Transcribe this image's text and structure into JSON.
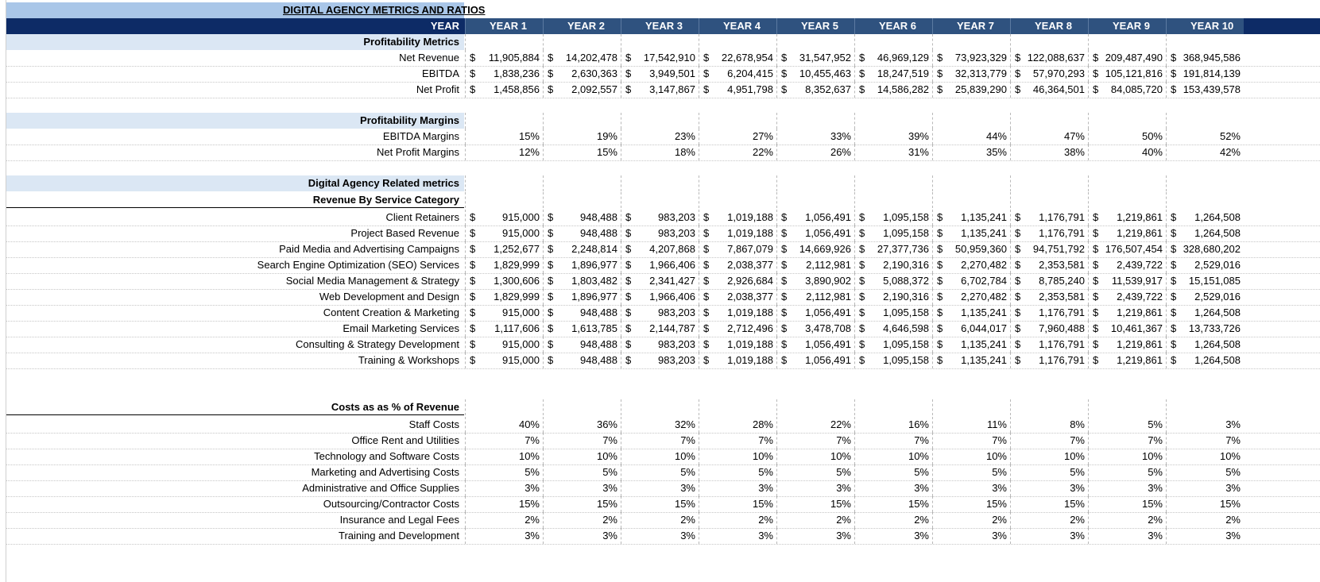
{
  "title": "DIGITAL AGENCY METRICS AND RATIOS",
  "year_label": "YEAR",
  "years": [
    "YEAR 1",
    "YEAR 2",
    "YEAR 3",
    "YEAR 4",
    "YEAR 5",
    "YEAR 6",
    "YEAR 7",
    "YEAR 8",
    "YEAR 9",
    "YEAR 10"
  ],
  "currency_symbol": "$",
  "sections": {
    "profitability_metrics": "Profitability Metrics",
    "profitability_margins": "Profitability Margins",
    "digital_agency": "Digital Agency Related metrics",
    "revenue_by_service": "Revenue By Service Category",
    "costs_pct": "Costs as as % of Revenue"
  },
  "rows": [
    {
      "label": "Net Revenue",
      "dollar": true,
      "values": [
        "11,905,884",
        "14,202,478",
        "17,542,910",
        "22,678,954",
        "31,547,952",
        "46,969,129",
        "73,923,329",
        "122,088,637",
        "209,487,490",
        "368,945,586"
      ]
    },
    {
      "label": "EBITDA",
      "dollar": true,
      "values": [
        "1,838,236",
        "2,630,363",
        "3,949,501",
        "6,204,415",
        "10,455,463",
        "18,247,519",
        "32,313,779",
        "57,970,293",
        "105,121,816",
        "191,814,139"
      ]
    },
    {
      "label": "Net Profit",
      "dollar": true,
      "values": [
        "1,458,856",
        "2,092,557",
        "3,147,867",
        "4,951,798",
        "8,352,637",
        "14,586,282",
        "25,839,290",
        "46,364,501",
        "84,085,720",
        "153,439,578"
      ]
    },
    {
      "label": "EBITDA Margins",
      "dollar": false,
      "values": [
        "15%",
        "19%",
        "23%",
        "27%",
        "33%",
        "39%",
        "44%",
        "47%",
        "50%",
        "52%"
      ]
    },
    {
      "label": "Net Profit Margins",
      "dollar": false,
      "values": [
        "12%",
        "15%",
        "18%",
        "22%",
        "26%",
        "31%",
        "35%",
        "38%",
        "40%",
        "42%"
      ]
    },
    {
      "label": "Client Retainers",
      "dollar": true,
      "values": [
        "915,000",
        "948,488",
        "983,203",
        "1,019,188",
        "1,056,491",
        "1,095,158",
        "1,135,241",
        "1,176,791",
        "1,219,861",
        "1,264,508"
      ]
    },
    {
      "label": "Project Based Revenue",
      "dollar": true,
      "values": [
        "915,000",
        "948,488",
        "983,203",
        "1,019,188",
        "1,056,491",
        "1,095,158",
        "1,135,241",
        "1,176,791",
        "1,219,861",
        "1,264,508"
      ]
    },
    {
      "label": "Paid Media and Advertising Campaigns",
      "dollar": true,
      "values": [
        "1,252,677",
        "2,248,814",
        "4,207,868",
        "7,867,079",
        "14,669,926",
        "27,377,736",
        "50,959,360",
        "94,751,792",
        "176,507,454",
        "328,680,202"
      ]
    },
    {
      "label": "Search Engine Optimization (SEO) Services",
      "dollar": true,
      "values": [
        "1,829,999",
        "1,896,977",
        "1,966,406",
        "2,038,377",
        "2,112,981",
        "2,190,316",
        "2,270,482",
        "2,353,581",
        "2,439,722",
        "2,529,016"
      ]
    },
    {
      "label": "Social Media Management & Strategy",
      "dollar": true,
      "values": [
        "1,300,606",
        "1,803,482",
        "2,341,427",
        "2,926,684",
        "3,890,902",
        "5,088,372",
        "6,702,784",
        "8,785,240",
        "11,539,917",
        "15,151,085"
      ]
    },
    {
      "label": "Web Development and Design",
      "dollar": true,
      "values": [
        "1,829,999",
        "1,896,977",
        "1,966,406",
        "2,038,377",
        "2,112,981",
        "2,190,316",
        "2,270,482",
        "2,353,581",
        "2,439,722",
        "2,529,016"
      ]
    },
    {
      "label": "Content Creation & Marketing",
      "dollar": true,
      "values": [
        "915,000",
        "948,488",
        "983,203",
        "1,019,188",
        "1,056,491",
        "1,095,158",
        "1,135,241",
        "1,176,791",
        "1,219,861",
        "1,264,508"
      ]
    },
    {
      "label": "Email Marketing Services",
      "dollar": true,
      "values": [
        "1,117,606",
        "1,613,785",
        "2,144,787",
        "2,712,496",
        "3,478,708",
        "4,646,598",
        "6,044,017",
        "7,960,488",
        "10,461,367",
        "13,733,726"
      ]
    },
    {
      "label": "Consulting & Strategy Development",
      "dollar": true,
      "values": [
        "915,000",
        "948,488",
        "983,203",
        "1,019,188",
        "1,056,491",
        "1,095,158",
        "1,135,241",
        "1,176,791",
        "1,219,861",
        "1,264,508"
      ]
    },
    {
      "label": "Training & Workshops",
      "dollar": true,
      "values": [
        "915,000",
        "948,488",
        "983,203",
        "1,019,188",
        "1,056,491",
        "1,095,158",
        "1,135,241",
        "1,176,791",
        "1,219,861",
        "1,264,508"
      ]
    },
    {
      "label": "Staff Costs",
      "dollar": false,
      "values": [
        "40%",
        "36%",
        "32%",
        "28%",
        "22%",
        "16%",
        "11%",
        "8%",
        "5%",
        "3%"
      ]
    },
    {
      "label": "Office Rent and Utilities",
      "dollar": false,
      "values": [
        "7%",
        "7%",
        "7%",
        "7%",
        "7%",
        "7%",
        "7%",
        "7%",
        "7%",
        "7%"
      ]
    },
    {
      "label": "Technology and Software Costs",
      "dollar": false,
      "values": [
        "10%",
        "10%",
        "10%",
        "10%",
        "10%",
        "10%",
        "10%",
        "10%",
        "10%",
        "10%"
      ]
    },
    {
      "label": "Marketing and Advertising Costs",
      "dollar": false,
      "values": [
        "5%",
        "5%",
        "5%",
        "5%",
        "5%",
        "5%",
        "5%",
        "5%",
        "5%",
        "5%"
      ]
    },
    {
      "label": "Administrative and Office Supplies",
      "dollar": false,
      "values": [
        "3%",
        "3%",
        "3%",
        "3%",
        "3%",
        "3%",
        "3%",
        "3%",
        "3%",
        "3%"
      ]
    },
    {
      "label": "Outsourcing/Contractor Costs",
      "dollar": false,
      "values": [
        "15%",
        "15%",
        "15%",
        "15%",
        "15%",
        "15%",
        "15%",
        "15%",
        "15%",
        "15%"
      ]
    },
    {
      "label": "Insurance and Legal Fees",
      "dollar": false,
      "values": [
        "2%",
        "2%",
        "2%",
        "2%",
        "2%",
        "2%",
        "2%",
        "2%",
        "2%",
        "2%"
      ]
    },
    {
      "label": "Training and Development",
      "dollar": false,
      "values": [
        "3%",
        "3%",
        "3%",
        "3%",
        "3%",
        "3%",
        "3%",
        "3%",
        "3%",
        "3%"
      ]
    }
  ]
}
